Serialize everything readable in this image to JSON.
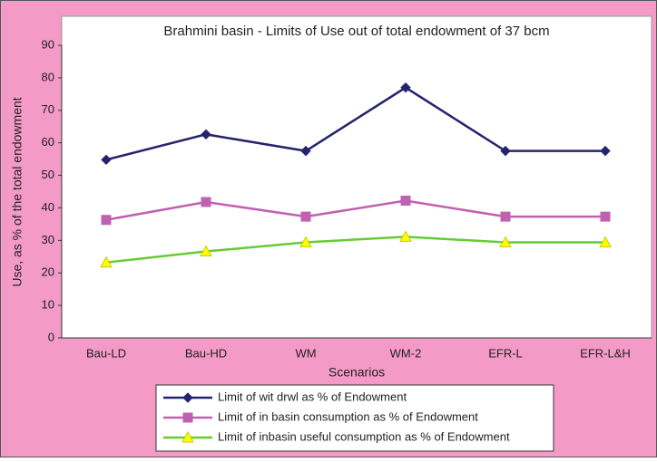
{
  "chart_data": {
    "type": "line",
    "title": "Brahmini basin - Limits of Use out of total endowment of 37 bcm",
    "x_label": "Scenarios",
    "y_label": "Use, as % of the total endowment",
    "categories": [
      "Bau-LD",
      "Bau-HD",
      "WM",
      "WM-2",
      "EFR-L",
      "EFR-L&H"
    ],
    "series": [
      {
        "name": "Limit of wit drwl as % of Endowment",
        "color": "#24246e",
        "marker": "diamond",
        "marker_color": "#24246e",
        "values": [
          54.8,
          62.6,
          57.5,
          77,
          57.5,
          57.5
        ]
      },
      {
        "name": "Limit of in basin consumption as % of Endowment",
        "color": "#c060b0",
        "marker": "square",
        "marker_color": "#c060b0",
        "values": [
          36.3,
          41.8,
          37.3,
          42.2,
          37.3,
          37.3
        ]
      },
      {
        "name": "Limit of inbasin useful consumption as % of Endowment",
        "color": "#66cc33",
        "marker": "triangle",
        "marker_color": "#ffff00",
        "values": [
          23.2,
          26.6,
          29.4,
          31.1,
          29.4,
          29.4
        ]
      }
    ],
    "ylim": [
      0,
      90
    ],
    "yticks": [
      0,
      10,
      20,
      30,
      40,
      50,
      60,
      70,
      80,
      90
    ],
    "grid": false
  }
}
